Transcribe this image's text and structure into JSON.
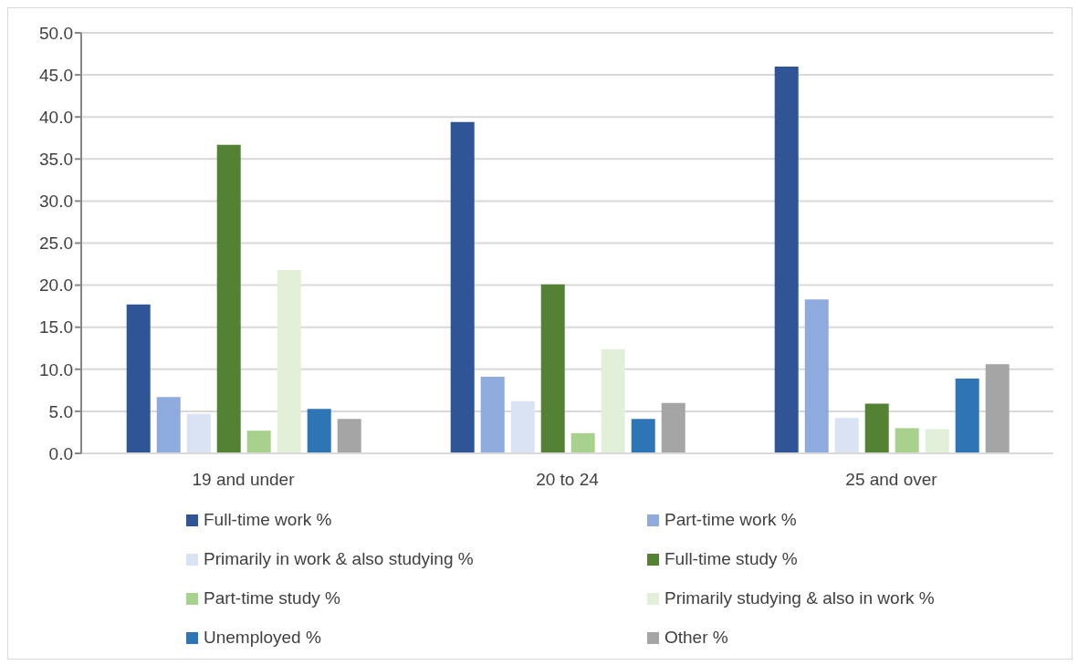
{
  "chart_data": {
    "type": "bar",
    "categories": [
      "19 and under",
      "20 to 24",
      "25 and over"
    ],
    "series": [
      {
        "name": "Full-time work %",
        "color": "#2f5597",
        "values": [
          17.7,
          39.4,
          46.0
        ]
      },
      {
        "name": "Part-time work %",
        "color": "#8faadc",
        "values": [
          6.7,
          9.1,
          18.3
        ]
      },
      {
        "name": "Primarily in work & also studying %",
        "color": "#dae3f3",
        "values": [
          4.7,
          6.2,
          4.2
        ]
      },
      {
        "name": "Full-time study %",
        "color": "#548235",
        "values": [
          36.7,
          20.1,
          5.9
        ]
      },
      {
        "name": "Part-time study %",
        "color": "#a9d18e",
        "values": [
          2.7,
          2.4,
          3.0
        ]
      },
      {
        "name": "Primarily studying & also in work %",
        "color": "#e2f0d9",
        "values": [
          21.8,
          12.4,
          2.9
        ]
      },
      {
        "name": "Unemployed %",
        "color": "#2e75b6",
        "values": [
          5.3,
          4.1,
          8.9
        ]
      },
      {
        "name": "Other %",
        "color": "#a5a5a5",
        "values": [
          4.1,
          6.0,
          10.6
        ]
      }
    ],
    "ylim": [
      0,
      50
    ],
    "yticks": [
      {
        "value": 0,
        "label": "0.0"
      },
      {
        "value": 5,
        "label": "5.0"
      },
      {
        "value": 10,
        "label": "10.0"
      },
      {
        "value": 15,
        "label": "15.0"
      },
      {
        "value": 20,
        "label": "20.0"
      },
      {
        "value": 25,
        "label": "25.0"
      },
      {
        "value": 30,
        "label": "30.0"
      },
      {
        "value": 35,
        "label": "35.0"
      },
      {
        "value": 40,
        "label": "40.0"
      },
      {
        "value": 45,
        "label": "45.0"
      },
      {
        "value": 50,
        "label": "50.0"
      }
    ],
    "grid": "y",
    "legend": "bottom"
  }
}
